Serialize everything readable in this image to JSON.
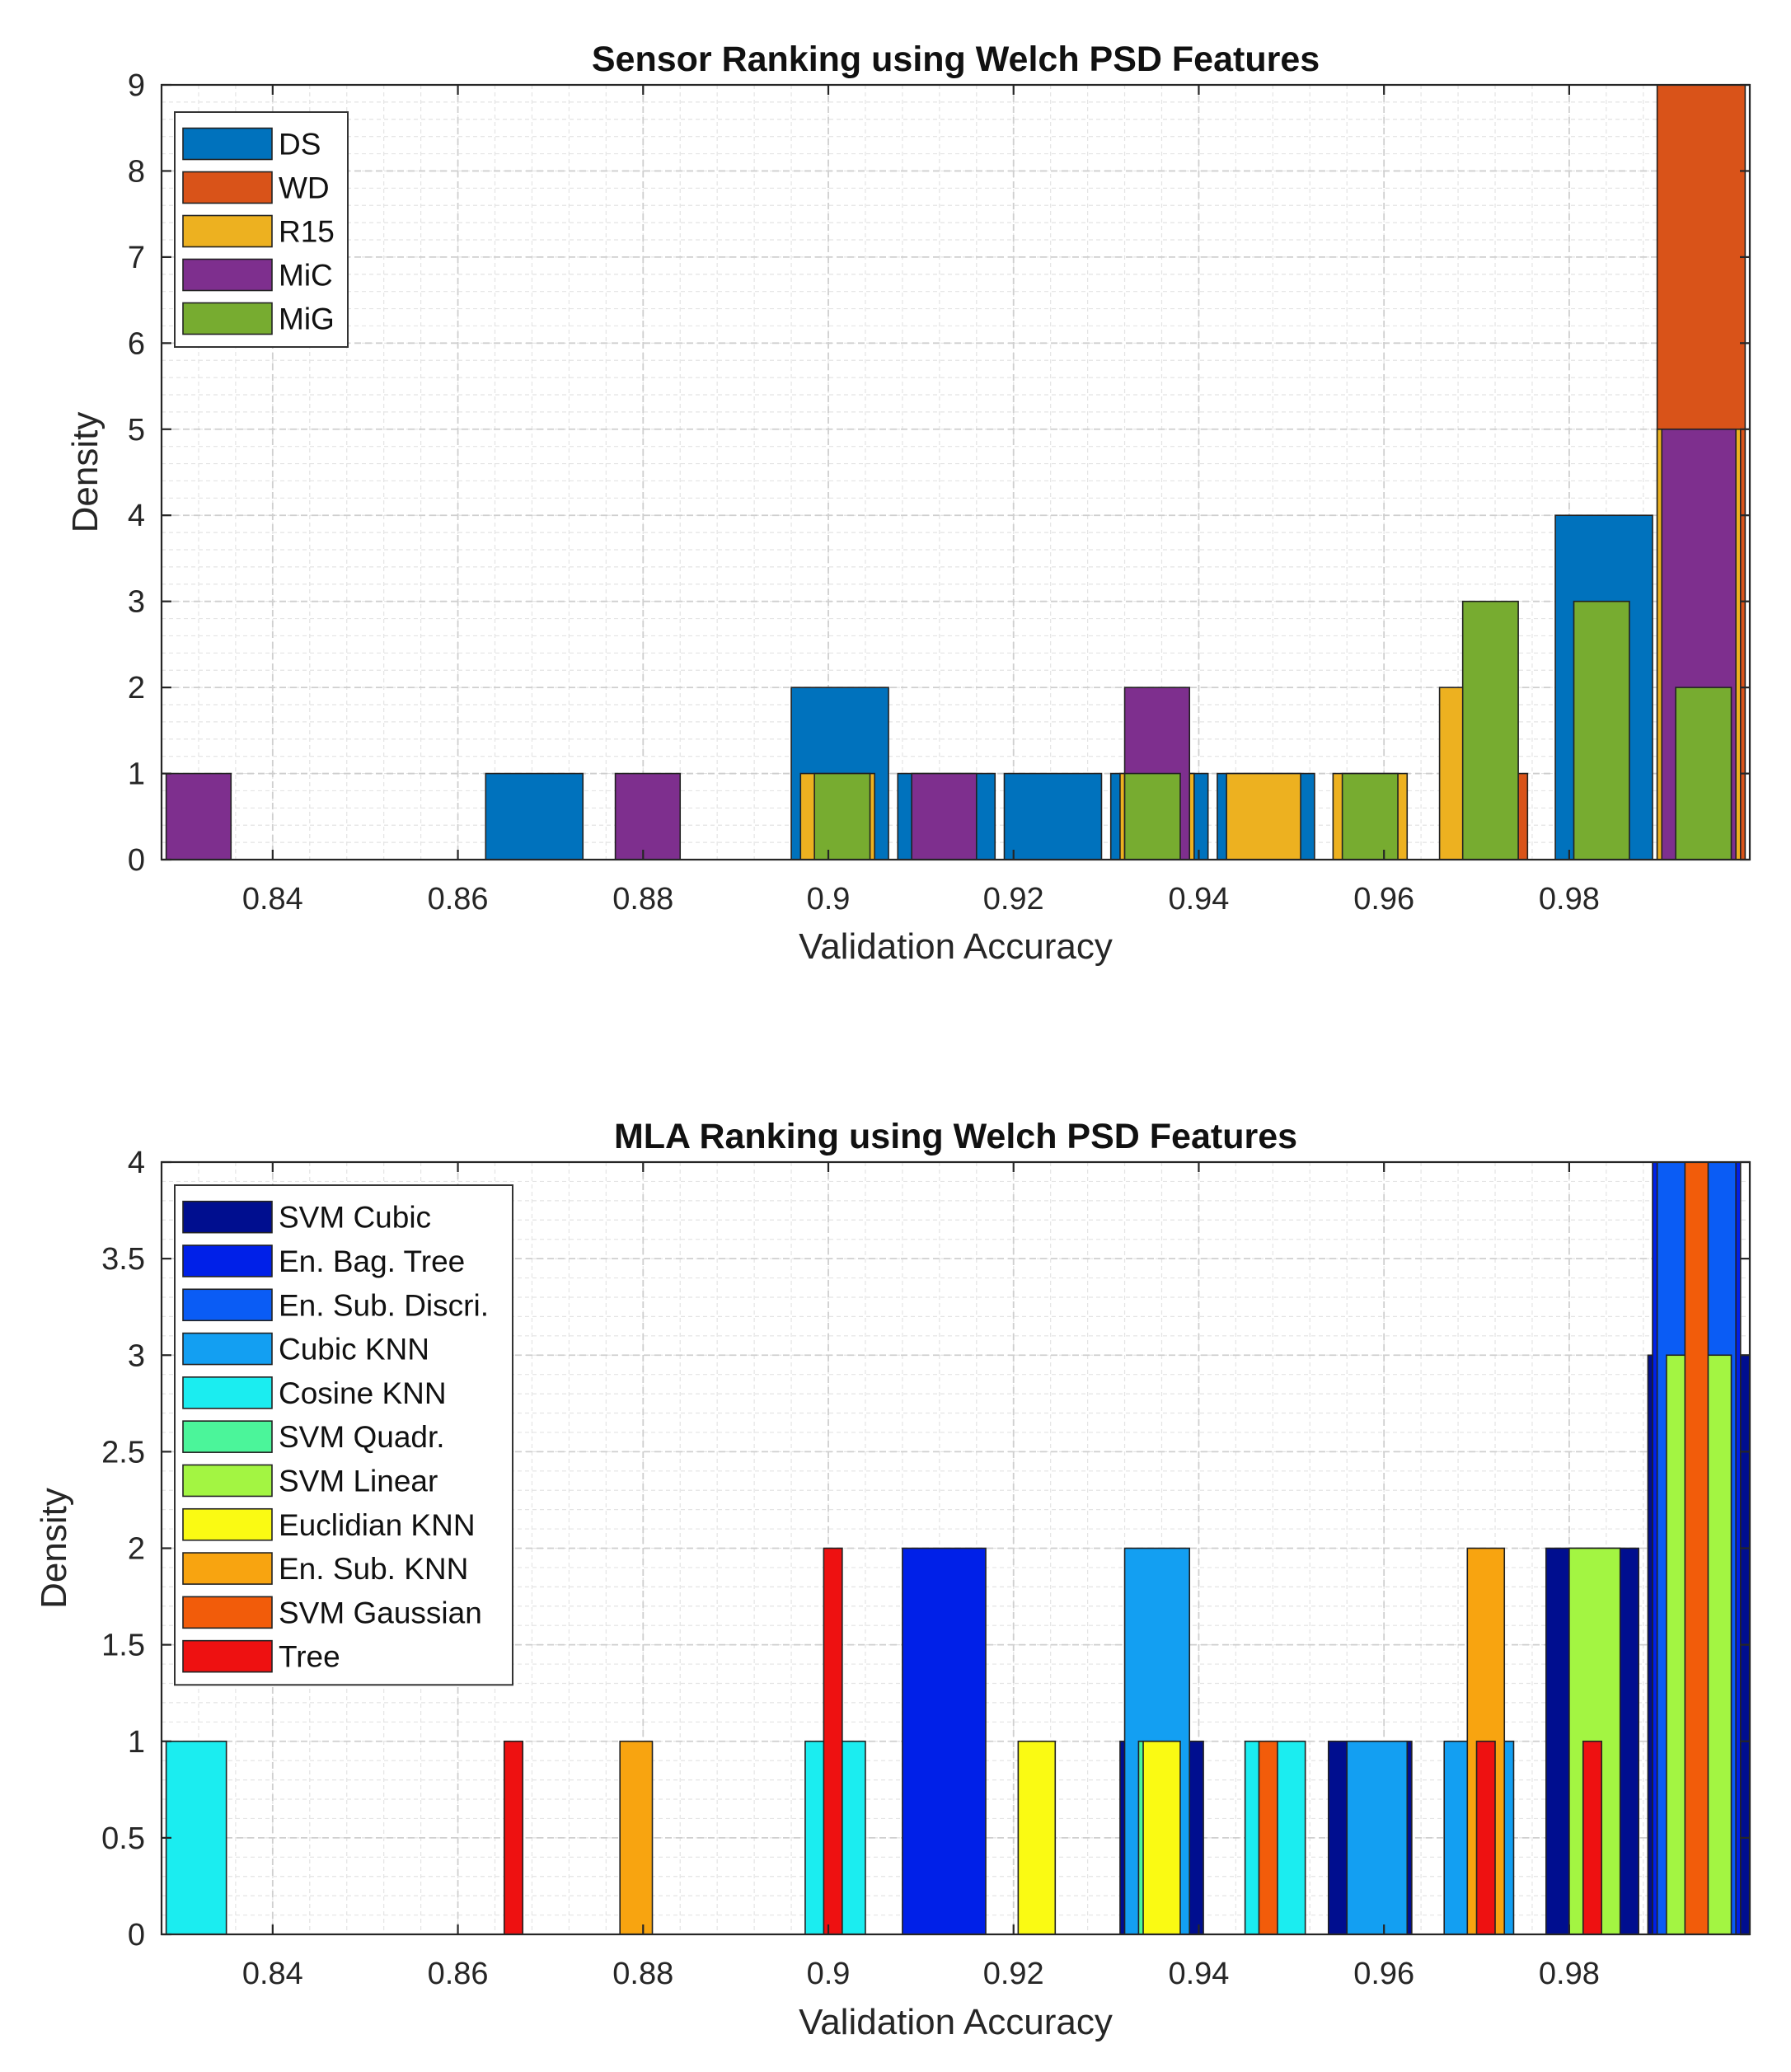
{
  "chart_data": [
    {
      "type": "histogram",
      "title": "Sensor Ranking using Welch PSD Features",
      "xlabel": "Validation Accuracy",
      "ylabel": "Density",
      "xlim": [
        0.828,
        0.9995
      ],
      "ylim": [
        0,
        9
      ],
      "xticks": [
        0.84,
        0.86,
        0.88,
        0.9,
        0.92,
        0.94,
        0.96,
        0.98
      ],
      "xtick_labels": [
        "0.84",
        "0.86",
        "0.88",
        "0.9",
        "0.92",
        "0.94",
        "0.96",
        "0.98"
      ],
      "yticks": [
        0,
        1,
        2,
        3,
        4,
        5,
        6,
        7,
        8,
        9
      ],
      "ytick_labels": [
        "0",
        "1",
        "2",
        "3",
        "4",
        "5",
        "6",
        "7",
        "8",
        "9"
      ],
      "grid": true,
      "legend_position": "top-left",
      "series": [
        {
          "name": "WD",
          "color": "#D95319",
          "bars": [
            {
              "x0": 0.9675,
              "x1": 0.9755,
              "value": 1
            },
            {
              "x0": 0.9795,
              "x1": 0.9875,
              "value": 2
            },
            {
              "x0": 0.9895,
              "x1": 0.999,
              "value": 9
            }
          ]
        },
        {
          "name": "DS",
          "color": "#0072BD",
          "bars": [
            {
              "x0": 0.863,
              "x1": 0.8735,
              "value": 1
            },
            {
              "x0": 0.896,
              "x1": 0.9065,
              "value": 2
            },
            {
              "x0": 0.9075,
              "x1": 0.918,
              "value": 1
            },
            {
              "x0": 0.919,
              "x1": 0.9295,
              "value": 1
            },
            {
              "x0": 0.9305,
              "x1": 0.941,
              "value": 1
            },
            {
              "x0": 0.942,
              "x1": 0.9525,
              "value": 1
            },
            {
              "x0": 0.9785,
              "x1": 0.989,
              "value": 4
            }
          ]
        },
        {
          "name": "R15",
          "color": "#EDB120",
          "bars": [
            {
              "x0": 0.897,
              "x1": 0.905,
              "value": 1
            },
            {
              "x0": 0.9315,
              "x1": 0.9395,
              "value": 1
            },
            {
              "x0": 0.943,
              "x1": 0.951,
              "value": 1
            },
            {
              "x0": 0.9545,
              "x1": 0.9625,
              "value": 1
            },
            {
              "x0": 0.966,
              "x1": 0.974,
              "value": 2
            },
            {
              "x0": 0.9895,
              "x1": 0.9985,
              "value": 5
            }
          ]
        },
        {
          "name": "MiC",
          "color": "#7E2F8E",
          "bars": [
            {
              "x0": 0.8285,
              "x1": 0.8355,
              "value": 1
            },
            {
              "x0": 0.877,
              "x1": 0.884,
              "value": 1
            },
            {
              "x0": 0.909,
              "x1": 0.916,
              "value": 1
            },
            {
              "x0": 0.932,
              "x1": 0.939,
              "value": 2
            },
            {
              "x0": 0.99,
              "x1": 0.998,
              "value": 5
            }
          ]
        },
        {
          "name": "MiG",
          "color": "#77AC30",
          "bars": [
            {
              "x0": 0.8985,
              "x1": 0.9045,
              "value": 1
            },
            {
              "x0": 0.932,
              "x1": 0.938,
              "value": 1
            },
            {
              "x0": 0.9555,
              "x1": 0.9615,
              "value": 1
            },
            {
              "x0": 0.9685,
              "x1": 0.9745,
              "value": 3
            },
            {
              "x0": 0.9805,
              "x1": 0.9865,
              "value": 3
            },
            {
              "x0": 0.9915,
              "x1": 0.9975,
              "value": 2
            }
          ]
        }
      ],
      "legend_order": [
        "DS",
        "WD",
        "R15",
        "MiC",
        "MiG"
      ]
    },
    {
      "type": "histogram",
      "title": "MLA Ranking using Welch PSD Features",
      "xlabel": "Validation Accuracy",
      "ylabel": "Density",
      "xlim": [
        0.828,
        0.9995
      ],
      "ylim": [
        0,
        4
      ],
      "xticks": [
        0.84,
        0.86,
        0.88,
        0.9,
        0.92,
        0.94,
        0.96,
        0.98
      ],
      "xtick_labels": [
        "0.84",
        "0.86",
        "0.88",
        "0.9",
        "0.92",
        "0.94",
        "0.96",
        "0.98"
      ],
      "yticks": [
        0,
        0.5,
        1,
        1.5,
        2,
        2.5,
        3,
        3.5,
        4
      ],
      "ytick_labels": [
        "0",
        "0.5",
        "1",
        "1.5",
        "2",
        "2.5",
        "3",
        "3.5",
        "4"
      ],
      "grid": true,
      "legend_position": "top-left",
      "series": [
        {
          "name": "SVM Cubic",
          "color": "#000E8F",
          "bars": [
            {
              "x0": 0.9315,
              "x1": 0.9405,
              "value": 1
            },
            {
              "x0": 0.954,
              "x1": 0.963,
              "value": 1
            },
            {
              "x0": 0.9775,
              "x1": 0.9875,
              "value": 2
            },
            {
              "x0": 0.9885,
              "x1": 0.9995,
              "value": 3
            }
          ]
        },
        {
          "name": "En. Bag. Tree",
          "color": "#0020E8",
          "bars": [
            {
              "x0": 0.908,
              "x1": 0.917,
              "value": 2
            },
            {
              "x0": 0.989,
              "x1": 0.9985,
              "value": 4
            }
          ]
        },
        {
          "name": "En. Sub. Discri.",
          "color": "#0A5CF5",
          "bars": [
            {
              "x0": 0.98,
              "x1": 0.983,
              "value": 1
            },
            {
              "x0": 0.9895,
              "x1": 0.998,
              "value": 4
            }
          ]
        },
        {
          "name": "Cubic KNN",
          "color": "#139FF2",
          "bars": [
            {
              "x0": 0.932,
              "x1": 0.939,
              "value": 2
            },
            {
              "x0": 0.956,
              "x1": 0.9625,
              "value": 1
            },
            {
              "x0": 0.9665,
              "x1": 0.974,
              "value": 1
            }
          ]
        },
        {
          "name": "Cosine KNN",
          "color": "#1BEDF0",
          "bars": [
            {
              "x0": 0.8285,
              "x1": 0.835,
              "value": 1
            },
            {
              "x0": 0.8975,
              "x1": 0.904,
              "value": 1
            },
            {
              "x0": 0.945,
              "x1": 0.9515,
              "value": 1
            }
          ]
        },
        {
          "name": "SVM Quadr.",
          "color": "#4BF59A",
          "bars": [
            {
              "x0": 0.9335,
              "x1": 0.9375,
              "value": 1
            },
            {
              "x0": 0.9915,
              "x1": 0.995,
              "value": 1
            }
          ]
        },
        {
          "name": "SVM Linear",
          "color": "#A3F542",
          "bars": [
            {
              "x0": 0.98,
              "x1": 0.9855,
              "value": 2
            },
            {
              "x0": 0.9905,
              "x1": 0.9975,
              "value": 3
            }
          ]
        },
        {
          "name": "Euclidian KNN",
          "color": "#FAFA13",
          "bars": [
            {
              "x0": 0.9205,
              "x1": 0.9245,
              "value": 1
            },
            {
              "x0": 0.934,
              "x1": 0.938,
              "value": 1
            }
          ]
        },
        {
          "name": "En. Sub. KNN",
          "color": "#F8A410",
          "bars": [
            {
              "x0": 0.8775,
              "x1": 0.881,
              "value": 1
            },
            {
              "x0": 0.969,
              "x1": 0.973,
              "value": 2
            }
          ]
        },
        {
          "name": "SVM Gaussian",
          "color": "#F25C0A",
          "bars": [
            {
              "x0": 0.9465,
              "x1": 0.9485,
              "value": 1
            },
            {
              "x0": 0.9925,
              "x1": 0.995,
              "value": 4
            }
          ]
        },
        {
          "name": "Tree",
          "color": "#EE1111",
          "bars": [
            {
              "x0": 0.865,
              "x1": 0.867,
              "value": 1
            },
            {
              "x0": 0.8995,
              "x1": 0.9015,
              "value": 2
            },
            {
              "x0": 0.97,
              "x1": 0.972,
              "value": 1
            },
            {
              "x0": 0.9815,
              "x1": 0.9835,
              "value": 1
            }
          ]
        }
      ],
      "legend_order": [
        "SVM Cubic",
        "En. Bag. Tree",
        "En. Sub. Discri.",
        "Cubic KNN",
        "Cosine KNN",
        "SVM Quadr.",
        "SVM Linear",
        "Euclidian KNN",
        "En. Sub. KNN",
        "SVM Gaussian",
        "Tree"
      ]
    }
  ]
}
